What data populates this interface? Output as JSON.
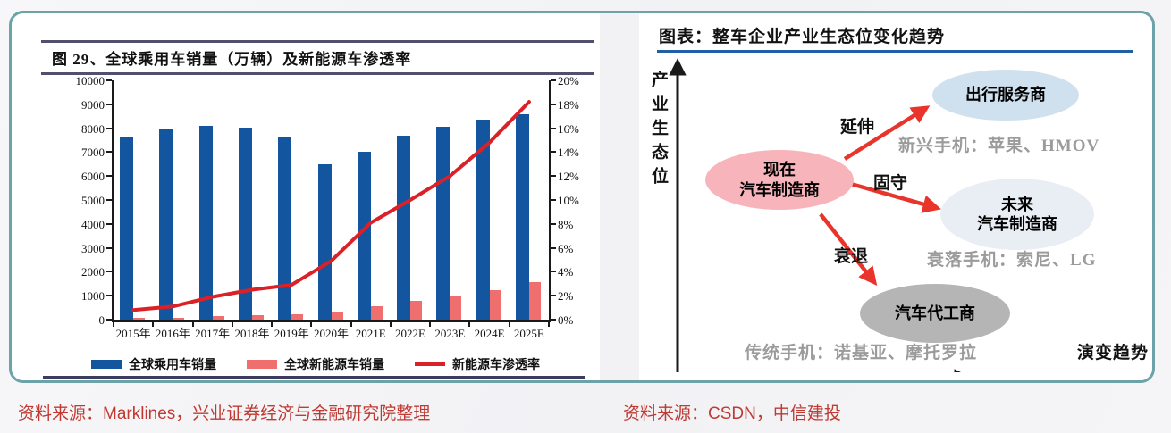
{
  "colors": {
    "page_bg": "#f4f4f6",
    "card_border": "#6ba3a9",
    "gutter": "#f2f2f4",
    "fig_rule": "#50506e",
    "bottom_rule": "#3c3c60",
    "title_underline": "#1f5fa8",
    "axis": "#1a1a1a",
    "gray_text": "#9b9b9b",
    "red_arrow": "#e8342a",
    "source_text": "#bf3a32"
  },
  "chart_data": {
    "type": "bar",
    "title": "图 29、全球乘用车销量（万辆）及新能源车渗透率",
    "categories": [
      "2015年",
      "2016年",
      "2017年",
      "2018年",
      "2019年",
      "2020年",
      "2021E",
      "2022E",
      "2023E",
      "2024E",
      "2025E"
    ],
    "series": [
      {
        "name": "全球乘用车销量",
        "type": "bar",
        "axis": "left",
        "color": "#1455a0",
        "values": [
          7600,
          7950,
          8100,
          8020,
          7640,
          6480,
          7000,
          7700,
          8070,
          8360,
          8570
        ]
      },
      {
        "name": "全球新能源车销量",
        "type": "bar",
        "axis": "left",
        "color": "#ee6f6e",
        "values": [
          60,
          90,
          150,
          200,
          220,
          320,
          570,
          770,
          970,
          1240,
          1560
        ]
      },
      {
        "name": "新能源车渗透率",
        "type": "line",
        "axis": "right",
        "color": "#da2128",
        "values": [
          0.8,
          1.1,
          1.9,
          2.5,
          2.9,
          4.9,
          8.1,
          10.0,
          12.0,
          14.8,
          18.2
        ]
      }
    ],
    "left_axis": {
      "min": 0,
      "max": 10000,
      "step": 1000
    },
    "right_axis": {
      "min": 0,
      "max": 20,
      "step": 2,
      "suffix": "%"
    },
    "legend_position": "bottom",
    "gridlines": false
  },
  "left_panel": {
    "source_note": "资料来源：Marklines，兴业证券经济与金融研究院整理"
  },
  "diagram": {
    "title": "图表：整车企业产业生态位变化趋势",
    "y_axis_label": "产业生态位",
    "x_axis_label": "演变趋势",
    "nodes": [
      {
        "id": "now-automaker",
        "label_lines": [
          "现在",
          "汽车制造商"
        ],
        "fill": "#f8b4bb"
      },
      {
        "id": "mobility-service",
        "label_lines": [
          "出行服务商"
        ],
        "fill": "#cfe0ee"
      },
      {
        "id": "future-automaker",
        "label_lines": [
          "未来",
          "汽车制造商"
        ],
        "fill": "#e9eef4"
      },
      {
        "id": "contract-manufacturer",
        "label_lines": [
          "汽车代工商"
        ],
        "fill": "#b5b5b5"
      }
    ],
    "arrows": [
      {
        "label": "延伸"
      },
      {
        "label": "固守"
      },
      {
        "label": "衰退"
      }
    ],
    "annotations": {
      "emerging": "新兴手机：苹果、HMOV",
      "declining": "衰落手机：索尼、LG",
      "traditional": "传统手机：诺基亚、摩托罗拉"
    },
    "source_note": "资料来源：CSDN，中信建投"
  }
}
